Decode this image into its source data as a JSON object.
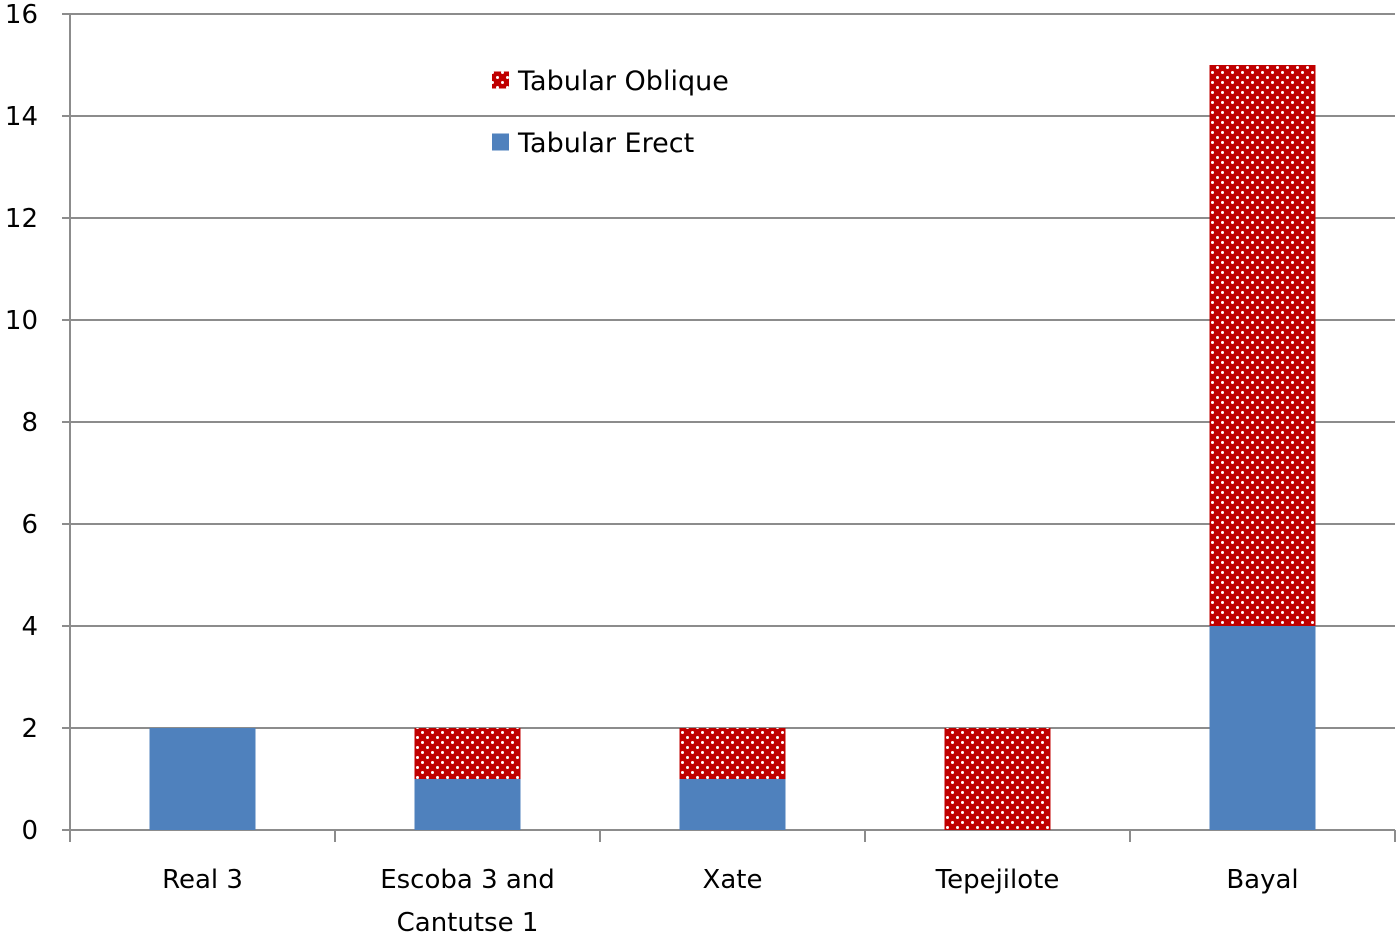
{
  "chart_data": {
    "type": "bar",
    "stacked": true,
    "title": "",
    "xlabel": "",
    "ylabel": "",
    "categories": [
      [
        "Real 3"
      ],
      [
        "Escoba 3 and",
        "Cantutse 1"
      ],
      [
        "Xate"
      ],
      [
        "Tepejilote"
      ],
      [
        "Bayal"
      ]
    ],
    "series": [
      {
        "name": "Tabular Erect",
        "values": [
          2,
          1,
          1,
          0,
          4
        ],
        "color": "#4f81bd",
        "pattern": "solid"
      },
      {
        "name": "Tabular Oblique",
        "values": [
          0,
          1,
          1,
          2,
          11
        ],
        "color": "#c00000",
        "pattern": "white-dots"
      }
    ],
    "legend_order": [
      "Tabular Oblique",
      "Tabular Erect"
    ],
    "ylim": [
      0,
      16
    ],
    "yticks": [
      0,
      2,
      4,
      6,
      8,
      10,
      12,
      14,
      16
    ],
    "grid": true,
    "legend_position": "top-center"
  }
}
